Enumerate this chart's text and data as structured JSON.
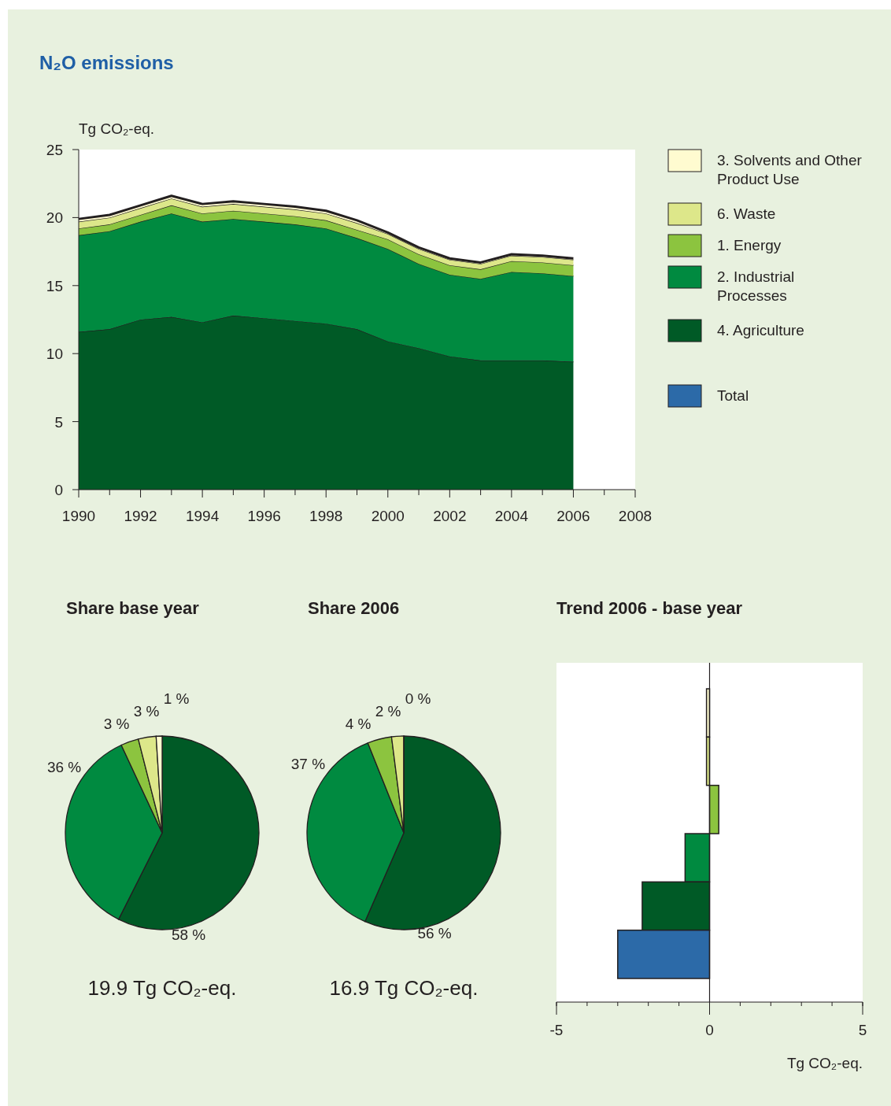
{
  "chart_data": [
    {
      "type": "area",
      "stacked": true,
      "title": "N₂O emissions",
      "ylabel": "Tg CO₂-eq.",
      "legend": "right",
      "x": [
        1990,
        1991,
        1992,
        1993,
        1994,
        1995,
        1996,
        1997,
        1998,
        1999,
        2000,
        2001,
        2002,
        2003,
        2004,
        2005,
        2006
      ],
      "xlim": [
        1990,
        2008
      ],
      "xticks": [
        1990,
        {
          "value": 1991,
          "label": null
        },
        1992,
        {
          "value": 1993,
          "label": null
        },
        1994,
        {
          "value": 1995,
          "label": null
        },
        1996,
        {
          "value": 1997,
          "label": null
        },
        1998,
        {
          "value": 1999,
          "label": null
        },
        2000,
        {
          "value": 2001,
          "label": null
        },
        2002,
        {
          "value": 2003,
          "label": null
        },
        2004,
        {
          "value": 2005,
          "label": null
        },
        2006,
        {
          "value": 2007,
          "label": null
        },
        2008
      ],
      "ylim": [
        0,
        25
      ],
      "yticks": [
        0,
        5,
        10,
        15,
        20,
        25
      ],
      "series": [
        {
          "name": "4. Agriculture",
          "color": "#005a26",
          "values": [
            11.6,
            11.8,
            12.5,
            12.7,
            12.3,
            12.8,
            12.6,
            12.4,
            12.2,
            11.8,
            10.9,
            10.4,
            9.8,
            9.5,
            9.5,
            9.5,
            9.4
          ]
        },
        {
          "name": "2. Industrial Processes",
          "color": "#008a40",
          "values": [
            7.1,
            7.2,
            7.2,
            7.6,
            7.4,
            7.1,
            7.1,
            7.1,
            7.0,
            6.7,
            6.8,
            6.2,
            6.0,
            6.0,
            6.5,
            6.4,
            6.3
          ]
        },
        {
          "name": "1. Energy",
          "color": "#8cc43f",
          "values": [
            0.5,
            0.5,
            0.5,
            0.6,
            0.6,
            0.6,
            0.6,
            0.6,
            0.6,
            0.6,
            0.7,
            0.7,
            0.7,
            0.7,
            0.8,
            0.8,
            0.8
          ]
        },
        {
          "name": "6. Waste",
          "color": "#dde78a",
          "values": [
            0.5,
            0.5,
            0.5,
            0.5,
            0.5,
            0.5,
            0.5,
            0.5,
            0.5,
            0.5,
            0.4,
            0.4,
            0.4,
            0.4,
            0.4,
            0.4,
            0.4
          ]
        },
        {
          "name": "3. Solvents and Other Product Use",
          "color": "#fffbd0",
          "values": [
            0.2,
            0.2,
            0.2,
            0.2,
            0.2,
            0.2,
            0.2,
            0.2,
            0.2,
            0.2,
            0.1,
            0.1,
            0.1,
            0.1,
            0.1,
            0.1,
            0.1
          ]
        }
      ]
    },
    {
      "type": "pie",
      "title": "Share base year",
      "categories": [
        null,
        null,
        null,
        null,
        null
      ],
      "values": [
        58,
        36,
        3,
        3,
        1
      ],
      "value_labels": [
        "58 %",
        "36 %",
        "3 %",
        "3 %",
        "1 %"
      ],
      "colors": [
        "#005a26",
        "#008a40",
        "#8cc43f",
        "#dde78a",
        "#fffbd0"
      ],
      "annotations": [
        "19.9 Tg CO₂-eq."
      ]
    },
    {
      "type": "pie",
      "title": "Share 2006",
      "categories": [
        null,
        null,
        null,
        null,
        null
      ],
      "values": [
        56,
        37,
        4,
        2,
        0
      ],
      "value_labels": [
        "56 %",
        "37 %",
        "4 %",
        "2 %",
        "0 %"
      ],
      "colors": [
        "#005a26",
        "#008a40",
        "#8cc43f",
        "#dde78a",
        "#fffbd0"
      ],
      "annotations": [
        "16.9 Tg CO₂-eq."
      ]
    },
    {
      "type": "bar",
      "orientation": "horizontal",
      "title": "Trend 2006 - base year",
      "xlabel": "Tg CO₂-eq.",
      "legend": "right",
      "categories": [
        null,
        null,
        null,
        null,
        null,
        null
      ],
      "xlim": [
        -5,
        5
      ],
      "xticks": [
        -5,
        {
          "value": -4,
          "label": null
        },
        {
          "value": -3,
          "label": null
        },
        {
          "value": -2,
          "label": null
        },
        {
          "value": -1,
          "label": null
        },
        0,
        {
          "value": 1,
          "label": null
        },
        {
          "value": 2,
          "label": null
        },
        {
          "value": 3,
          "label": null
        },
        {
          "value": 4,
          "label": null
        },
        5
      ],
      "series": [
        {
          "colors": [
            "#fffbd0",
            "#dde78a",
            "#8cc43f",
            "#008a40",
            "#005a26",
            null
          ],
          "values": [
            -0.1,
            -0.1,
            0.3,
            -0.8,
            -2.2,
            null
          ]
        },
        {
          "name": "Total",
          "color": "#2c6aa8",
          "values": [
            null,
            null,
            null,
            null,
            null,
            -3.0
          ]
        }
      ]
    }
  ]
}
